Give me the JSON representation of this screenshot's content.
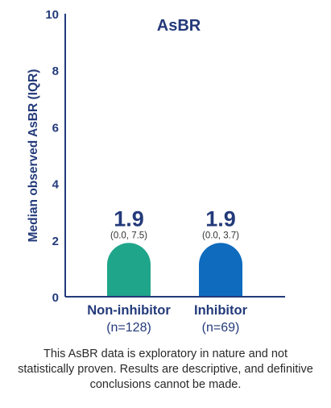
{
  "chart_data": {
    "type": "bar",
    "title": "AsBR",
    "ylabel": "Median observed AsBR (IQR)",
    "xlabel": "",
    "ylim": [
      0,
      10
    ],
    "yticks": [
      "0",
      "2",
      "4",
      "6",
      "8",
      "10"
    ],
    "categories": [
      {
        "name": "Non-inhibitor",
        "n_label": "(n=128)",
        "value": 1.9,
        "value_label": "1.9",
        "iqr_label": "(0.0, 7.5)",
        "color": "#1fa58a"
      },
      {
        "name": "Inhibitor",
        "n_label": "(n=69)",
        "value": 1.9,
        "value_label": "1.9",
        "iqr_label": "(0.0, 3.7)",
        "color": "#0f6bbd"
      }
    ],
    "grid": false,
    "legend": "none"
  },
  "colors": {
    "axis": "#233a7a",
    "title": "#233a7a",
    "value_text": "#233a7a"
  },
  "footnote": "This AsBR data is exploratory in nature and not statistically proven. Results are descriptive, and definitive conclusions cannot be made."
}
